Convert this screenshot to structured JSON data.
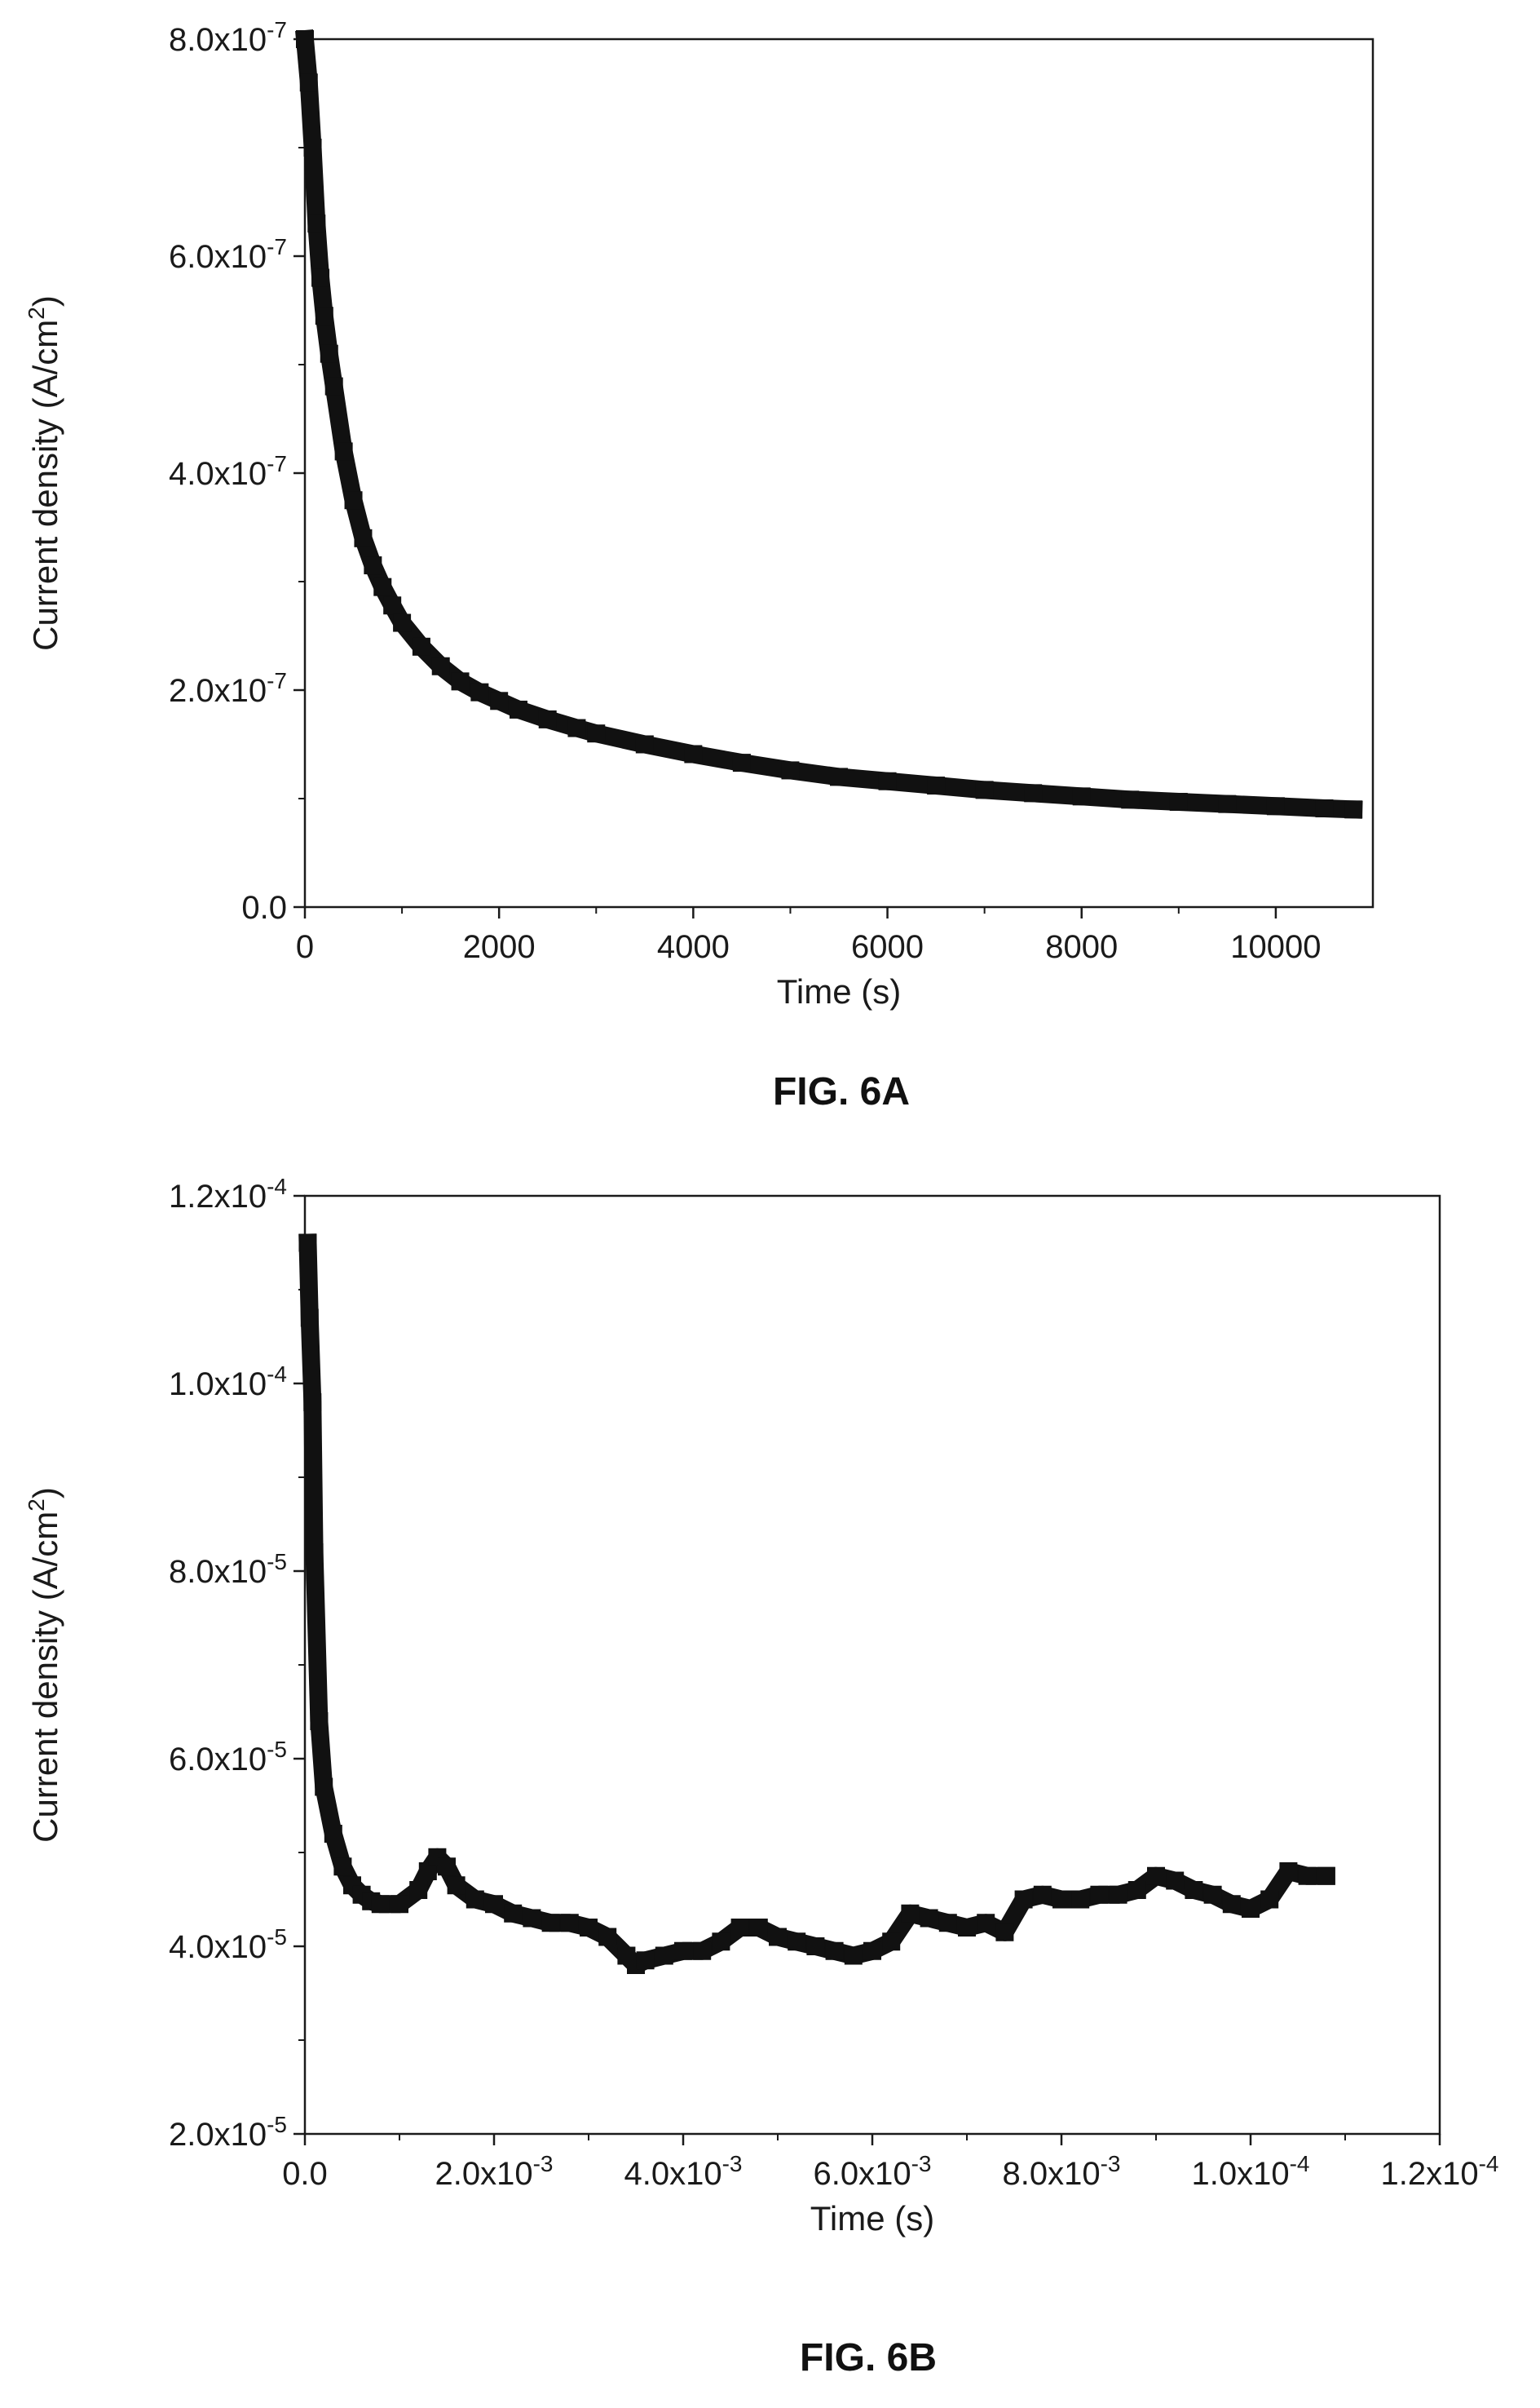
{
  "figures": [
    {
      "caption": "FIG. 6A"
    },
    {
      "caption": "FIG. 6B"
    }
  ],
  "chart_data": [
    {
      "type": "scatter",
      "title": "",
      "xlabel": "Time (s)",
      "ylabel_base": "Current density (A/cm",
      "ylabel_sup": "2",
      "ylabel_end": ")",
      "xlim": [
        0,
        11000
      ],
      "ylim": [
        0,
        8e-07
      ],
      "x_ticks": [
        {
          "value": 0,
          "label": "0"
        },
        {
          "value": 2000,
          "label": "2000"
        },
        {
          "value": 4000,
          "label": "4000"
        },
        {
          "value": 6000,
          "label": "6000"
        },
        {
          "value": 8000,
          "label": "8000"
        },
        {
          "value": 10000,
          "label": "10000"
        }
      ],
      "y_ticks": [
        {
          "value": 0,
          "mant": "0.0",
          "exp": ""
        },
        {
          "value": 2e-07,
          "mant": "2.0x10",
          "exp": "-7"
        },
        {
          "value": 4e-07,
          "mant": "4.0x10",
          "exp": "-7"
        },
        {
          "value": 6e-07,
          "mant": "6.0x10",
          "exp": "-7"
        },
        {
          "value": 8e-07,
          "mant": "8.0x10",
          "exp": "-7"
        }
      ],
      "grid": false,
      "series": [
        {
          "color": "#111111",
          "x": [
            0,
            40,
            80,
            120,
            160,
            200,
            250,
            300,
            400,
            500,
            600,
            700,
            800,
            900,
            1000,
            1200,
            1400,
            1600,
            1800,
            2000,
            2200,
            2500,
            2800,
            3000,
            3500,
            4000,
            4500,
            5000,
            5500,
            6000,
            6500,
            7000,
            7500,
            8000,
            8500,
            9000,
            9500,
            10000,
            10500,
            10800
          ],
          "y": [
            8e-07,
            7.6e-07,
            7e-07,
            6.3e-07,
            5.8e-07,
            5.45e-07,
            5.1e-07,
            4.8e-07,
            4.2e-07,
            3.75e-07,
            3.4e-07,
            3.15e-07,
            2.95e-07,
            2.78e-07,
            2.62e-07,
            2.4e-07,
            2.22e-07,
            2.08e-07,
            1.98e-07,
            1.9e-07,
            1.82e-07,
            1.73e-07,
            1.65e-07,
            1.6e-07,
            1.5e-07,
            1.41e-07,
            1.33e-07,
            1.26e-07,
            1.2e-07,
            1.16e-07,
            1.12e-07,
            1.08e-07,
            1.05e-07,
            1.02e-07,
            9.9e-08,
            9.7e-08,
            9.5e-08,
            9.3e-08,
            9.1e-08,
            9e-08
          ]
        }
      ]
    },
    {
      "type": "scatter",
      "title": "",
      "xlabel": "Time (s)",
      "ylabel_base": "Current density (A/cm",
      "ylabel_sup": "2",
      "ylabel_end": ")",
      "xlim": [
        0,
        0.012
      ],
      "ylim": [
        2e-05,
        0.00012
      ],
      "x_ticks": [
        {
          "value": 0,
          "mant": "0.0",
          "exp": ""
        },
        {
          "value": 0.002,
          "mant": "2.0x10",
          "exp": "-3"
        },
        {
          "value": 0.004,
          "mant": "4.0x10",
          "exp": "-3"
        },
        {
          "value": 0.006,
          "mant": "6.0x10",
          "exp": "-3"
        },
        {
          "value": 0.008,
          "mant": "8.0x10",
          "exp": "-3"
        },
        {
          "value": 0.01,
          "mant": "1.0x10",
          "exp": "-4"
        },
        {
          "value": 0.012,
          "mant": "1.2x10",
          "exp": "-4"
        }
      ],
      "y_ticks": [
        {
          "value": 2e-05,
          "mant": "2.0x10",
          "exp": "-5"
        },
        {
          "value": 4e-05,
          "mant": "4.0x10",
          "exp": "-5"
        },
        {
          "value": 6e-05,
          "mant": "6.0x10",
          "exp": "-5"
        },
        {
          "value": 8e-05,
          "mant": "8.0x10",
          "exp": "-5"
        },
        {
          "value": 0.0001,
          "mant": "1.0x10",
          "exp": "-4"
        },
        {
          "value": 0.00012,
          "mant": "1.2x10",
          "exp": "-4"
        }
      ],
      "grid": false,
      "series": [
        {
          "color": "#111111",
          "x": [
            3e-05,
            5e-05,
            8e-05,
            0.0001,
            0.00015,
            0.0002,
            0.0003,
            0.0004,
            0.0005,
            0.0006,
            0.0007,
            0.0008,
            0.001,
            0.0012,
            0.0013,
            0.0014,
            0.0015,
            0.0016,
            0.0018,
            0.002,
            0.0022,
            0.0024,
            0.0026,
            0.0028,
            0.003,
            0.0032,
            0.0034,
            0.0035,
            0.0036,
            0.0038,
            0.004,
            0.0042,
            0.0044,
            0.0046,
            0.0048,
            0.005,
            0.0052,
            0.0054,
            0.0056,
            0.0058,
            0.006,
            0.0062,
            0.0064,
            0.0066,
            0.0068,
            0.007,
            0.0072,
            0.0074,
            0.0076,
            0.0078,
            0.008,
            0.0082,
            0.0084,
            0.0086,
            0.0088,
            0.009,
            0.0092,
            0.0094,
            0.0096,
            0.0098,
            0.01,
            0.0102,
            0.0104,
            0.0106,
            0.0108
          ],
          "y": [
            0.000115,
            0.000107,
            9.8e-05,
            8.2e-05,
            6.4e-05,
            5.7e-05,
            5.2e-05,
            4.85e-05,
            4.65e-05,
            4.55e-05,
            4.48e-05,
            4.45e-05,
            4.45e-05,
            4.6e-05,
            4.8e-05,
            4.95e-05,
            4.85e-05,
            4.65e-05,
            4.5e-05,
            4.45e-05,
            4.35e-05,
            4.3e-05,
            4.25e-05,
            4.25e-05,
            4.2e-05,
            4.1e-05,
            3.9e-05,
            3.8e-05,
            3.85e-05,
            3.9e-05,
            3.95e-05,
            3.95e-05,
            4.05e-05,
            4.2e-05,
            4.2e-05,
            4.1e-05,
            4.05e-05,
            4e-05,
            3.95e-05,
            3.9e-05,
            3.95e-05,
            4.05e-05,
            4.35e-05,
            4.3e-05,
            4.25e-05,
            4.2e-05,
            4.25e-05,
            4.15e-05,
            4.5e-05,
            4.55e-05,
            4.5e-05,
            4.5e-05,
            4.55e-05,
            4.55e-05,
            4.6e-05,
            4.75e-05,
            4.7e-05,
            4.6e-05,
            4.55e-05,
            4.45e-05,
            4.4e-05,
            4.5e-05,
            4.8e-05,
            4.75e-05,
            4.75e-05
          ]
        }
      ]
    }
  ]
}
